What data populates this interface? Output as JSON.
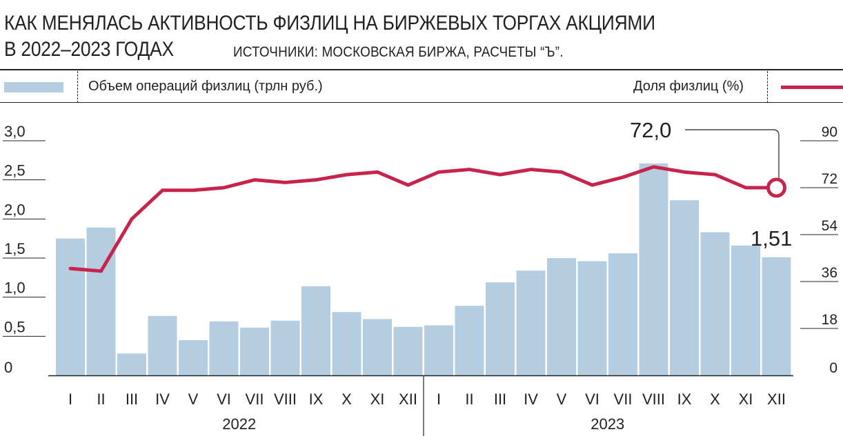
{
  "header": {
    "title_line1": "КАК МЕНЯЛАСЬ АКТИВНОСТЬ ФИЗЛИЦ НА БИРЖЕВЫХ ТОРГАХ АКЦИЯМИ",
    "title_line2": "В 2022–2023 ГОДАХ",
    "source": "ИСТОЧНИКИ: МОСКОВСКАЯ БИРЖА, РАСЧЕТЫ “Ъ”."
  },
  "legend": {
    "bar_label": "Объем операций физлиц (трлн руб.)",
    "line_label": "Доля физлиц (%)"
  },
  "colors": {
    "bar": "#b4cde0",
    "line": "#c8244b",
    "text": "#231f20",
    "grid": "#231f20"
  },
  "chart_data": {
    "type": "bar+line",
    "categories": [
      "I",
      "II",
      "III",
      "IV",
      "V",
      "VI",
      "VII",
      "VIII",
      "IX",
      "X",
      "XI",
      "XII",
      "I",
      "II",
      "III",
      "IV",
      "V",
      "VI",
      "VII",
      "VIII",
      "IX",
      "X",
      "XI",
      "XII"
    ],
    "groups": [
      {
        "label": "2022",
        "from": 0,
        "to": 11
      },
      {
        "label": "2023",
        "from": 12,
        "to": 23
      }
    ],
    "series": [
      {
        "name": "Объем операций физлиц (трлн руб.)",
        "type": "bar",
        "axis": "left",
        "values": [
          1.75,
          1.89,
          0.28,
          0.76,
          0.45,
          0.69,
          0.61,
          0.7,
          1.14,
          0.81,
          0.72,
          0.62,
          0.64,
          0.89,
          1.19,
          1.34,
          1.5,
          1.46,
          1.56,
          2.71,
          2.24,
          1.83,
          1.66,
          1.51
        ]
      },
      {
        "name": "Доля физлиц (%)",
        "type": "line",
        "axis": "right",
        "values": [
          41,
          40,
          60,
          71,
          71,
          72,
          75,
          74,
          75,
          77,
          78,
          73,
          78,
          79,
          77,
          79,
          78,
          73,
          76,
          80,
          78,
          77,
          72,
          72
        ]
      }
    ],
    "left_axis": {
      "ticks": [
        "3,0",
        "2,5",
        "2,0",
        "1,5",
        "1,0",
        "0,5",
        "0"
      ],
      "values": [
        3.0,
        2.5,
        2.0,
        1.5,
        1.0,
        0.5,
        0
      ],
      "ylim": [
        0,
        3.0
      ]
    },
    "right_axis": {
      "ticks": [
        "90",
        "72",
        "54",
        "36",
        "18",
        "0"
      ],
      "values": [
        90,
        72,
        54,
        36,
        18,
        0
      ],
      "ylim": [
        0,
        90
      ]
    },
    "annotations": [
      {
        "text": "72,0",
        "series": 1,
        "index": 23
      },
      {
        "text": "1,51",
        "series": 0,
        "index": 23
      }
    ],
    "legend_placement": "top"
  }
}
